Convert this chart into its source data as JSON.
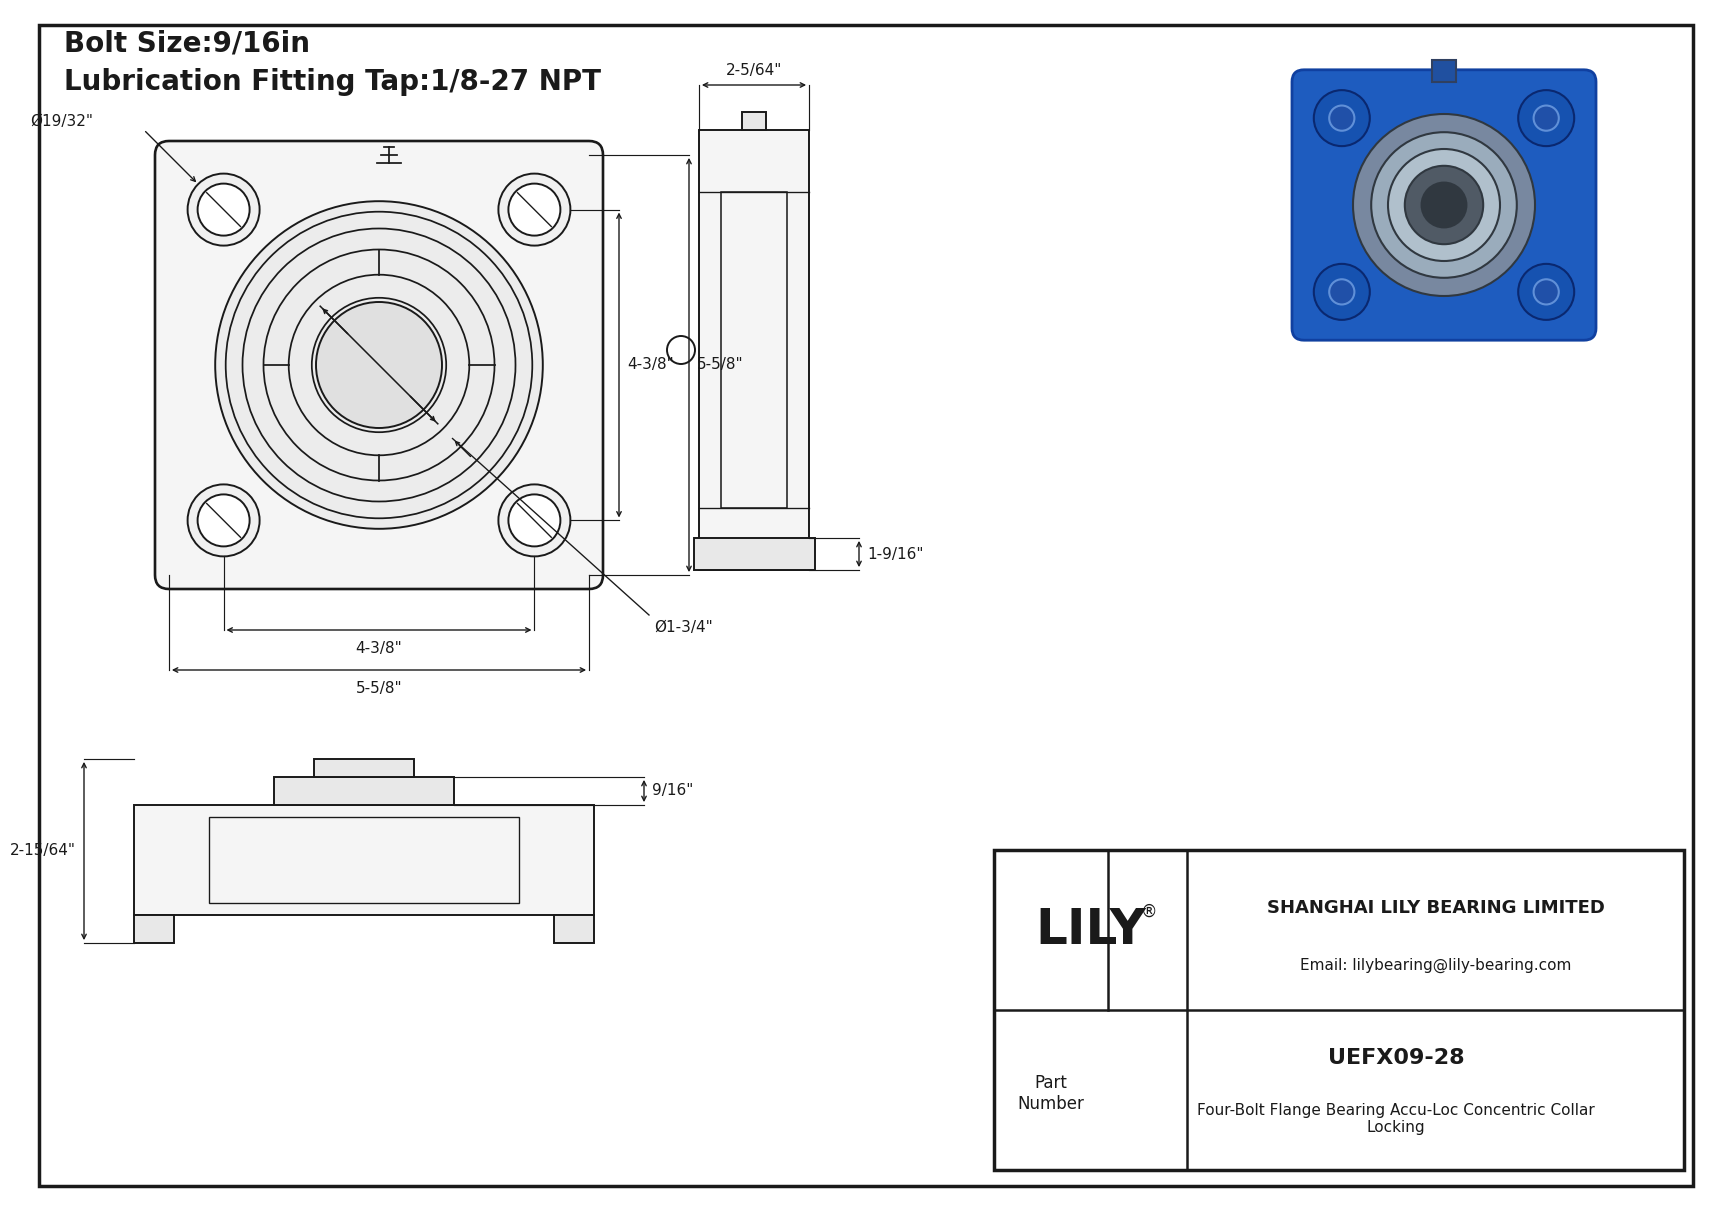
{
  "bg_color": "#ffffff",
  "line_color": "#1a1a1a",
  "title_line1": "Bolt Size:9/16in",
  "title_line2": "Lubrication Fitting Tap:1/8-27 NPT",
  "title_fontsize": 20,
  "dim_fontsize": 11,
  "dimensions": {
    "bolt_hole_dia": "Ø19/32\"",
    "bore_dia": "Ø1-3/4\"",
    "inner_span": "4-3/8\"",
    "outer_span": "5-5/8\"",
    "side_width": "2-5/64\"",
    "side_height": "1-9/16\"",
    "bottom_total_h": "2-15/64\"",
    "bottom_cap_h": "9/16\""
  },
  "title_block": {
    "company": "SHANGHAI LILY BEARING LIMITED",
    "email": "Email: lilybearing@lily-bearing.com",
    "logo": "LILY",
    "logo_reg": "®",
    "part_label": "Part\nNumber",
    "part_number": "UEFX09-28",
    "description": "Four-Bolt Flange Bearing Accu-Loc Concentric Collar\nLocking"
  }
}
